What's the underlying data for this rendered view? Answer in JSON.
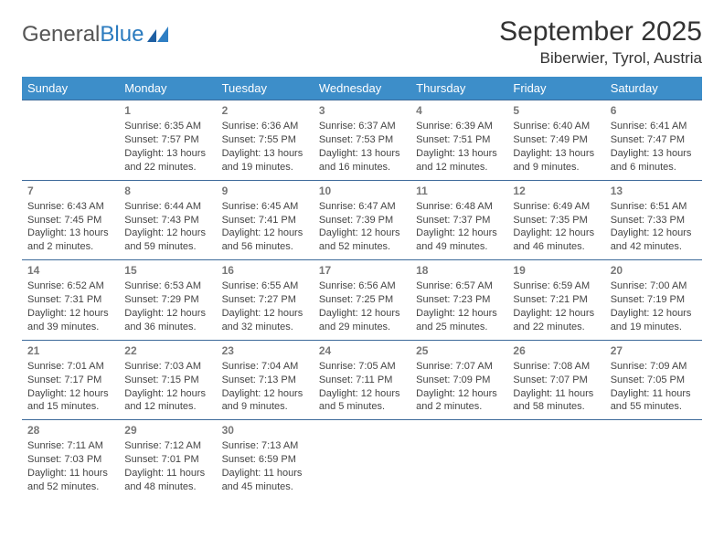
{
  "brand": {
    "part1": "General",
    "part2": "Blue"
  },
  "title": "September 2025",
  "location": "Biberwier, Tyrol, Austria",
  "colors": {
    "header_bg": "#3d8ec9",
    "header_text": "#ffffff",
    "row_border": "#3d6a9a",
    "body_text": "#444444",
    "daynum": "#777777",
    "brand_gray": "#555555",
    "brand_blue": "#2b7bbf",
    "background": "#ffffff"
  },
  "typography": {
    "title_fontsize": 30,
    "location_fontsize": 17,
    "dayheader_fontsize": 13,
    "cell_fontsize": 11,
    "daynum_fontsize": 12
  },
  "day_headers": [
    "Sunday",
    "Monday",
    "Tuesday",
    "Wednesday",
    "Thursday",
    "Friday",
    "Saturday"
  ],
  "weeks": [
    [
      null,
      {
        "n": "1",
        "sr": "6:35 AM",
        "ss": "7:57 PM",
        "dl": "13 hours and 22 minutes."
      },
      {
        "n": "2",
        "sr": "6:36 AM",
        "ss": "7:55 PM",
        "dl": "13 hours and 19 minutes."
      },
      {
        "n": "3",
        "sr": "6:37 AM",
        "ss": "7:53 PM",
        "dl": "13 hours and 16 minutes."
      },
      {
        "n": "4",
        "sr": "6:39 AM",
        "ss": "7:51 PM",
        "dl": "13 hours and 12 minutes."
      },
      {
        "n": "5",
        "sr": "6:40 AM",
        "ss": "7:49 PM",
        "dl": "13 hours and 9 minutes."
      },
      {
        "n": "6",
        "sr": "6:41 AM",
        "ss": "7:47 PM",
        "dl": "13 hours and 6 minutes."
      }
    ],
    [
      {
        "n": "7",
        "sr": "6:43 AM",
        "ss": "7:45 PM",
        "dl": "13 hours and 2 minutes."
      },
      {
        "n": "8",
        "sr": "6:44 AM",
        "ss": "7:43 PM",
        "dl": "12 hours and 59 minutes."
      },
      {
        "n": "9",
        "sr": "6:45 AM",
        "ss": "7:41 PM",
        "dl": "12 hours and 56 minutes."
      },
      {
        "n": "10",
        "sr": "6:47 AM",
        "ss": "7:39 PM",
        "dl": "12 hours and 52 minutes."
      },
      {
        "n": "11",
        "sr": "6:48 AM",
        "ss": "7:37 PM",
        "dl": "12 hours and 49 minutes."
      },
      {
        "n": "12",
        "sr": "6:49 AM",
        "ss": "7:35 PM",
        "dl": "12 hours and 46 minutes."
      },
      {
        "n": "13",
        "sr": "6:51 AM",
        "ss": "7:33 PM",
        "dl": "12 hours and 42 minutes."
      }
    ],
    [
      {
        "n": "14",
        "sr": "6:52 AM",
        "ss": "7:31 PM",
        "dl": "12 hours and 39 minutes."
      },
      {
        "n": "15",
        "sr": "6:53 AM",
        "ss": "7:29 PM",
        "dl": "12 hours and 36 minutes."
      },
      {
        "n": "16",
        "sr": "6:55 AM",
        "ss": "7:27 PM",
        "dl": "12 hours and 32 minutes."
      },
      {
        "n": "17",
        "sr": "6:56 AM",
        "ss": "7:25 PM",
        "dl": "12 hours and 29 minutes."
      },
      {
        "n": "18",
        "sr": "6:57 AM",
        "ss": "7:23 PM",
        "dl": "12 hours and 25 minutes."
      },
      {
        "n": "19",
        "sr": "6:59 AM",
        "ss": "7:21 PM",
        "dl": "12 hours and 22 minutes."
      },
      {
        "n": "20",
        "sr": "7:00 AM",
        "ss": "7:19 PM",
        "dl": "12 hours and 19 minutes."
      }
    ],
    [
      {
        "n": "21",
        "sr": "7:01 AM",
        "ss": "7:17 PM",
        "dl": "12 hours and 15 minutes."
      },
      {
        "n": "22",
        "sr": "7:03 AM",
        "ss": "7:15 PM",
        "dl": "12 hours and 12 minutes."
      },
      {
        "n": "23",
        "sr": "7:04 AM",
        "ss": "7:13 PM",
        "dl": "12 hours and 9 minutes."
      },
      {
        "n": "24",
        "sr": "7:05 AM",
        "ss": "7:11 PM",
        "dl": "12 hours and 5 minutes."
      },
      {
        "n": "25",
        "sr": "7:07 AM",
        "ss": "7:09 PM",
        "dl": "12 hours and 2 minutes."
      },
      {
        "n": "26",
        "sr": "7:08 AM",
        "ss": "7:07 PM",
        "dl": "11 hours and 58 minutes."
      },
      {
        "n": "27",
        "sr": "7:09 AM",
        "ss": "7:05 PM",
        "dl": "11 hours and 55 minutes."
      }
    ],
    [
      {
        "n": "28",
        "sr": "7:11 AM",
        "ss": "7:03 PM",
        "dl": "11 hours and 52 minutes."
      },
      {
        "n": "29",
        "sr": "7:12 AM",
        "ss": "7:01 PM",
        "dl": "11 hours and 48 minutes."
      },
      {
        "n": "30",
        "sr": "7:13 AM",
        "ss": "6:59 PM",
        "dl": "11 hours and 45 minutes."
      },
      null,
      null,
      null,
      null
    ]
  ],
  "labels": {
    "sunrise": "Sunrise:",
    "sunset": "Sunset:",
    "daylight": "Daylight:"
  }
}
